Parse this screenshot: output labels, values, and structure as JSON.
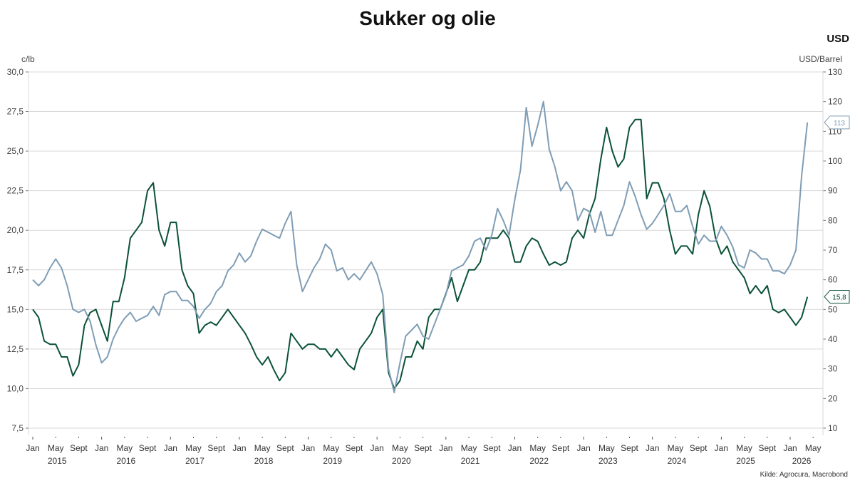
{
  "chart_data": {
    "type": "line",
    "title": "Sukker og olie",
    "right_axis_title": "USD",
    "ylabel_left": "c/lb",
    "ylabel_right": "USD/Barrel",
    "ylim_left": [
      7.5,
      30.0
    ],
    "ylim_right": [
      10,
      130
    ],
    "yticks_left": [
      "30,0",
      "27,5",
      "25,0",
      "22,5",
      "20,0",
      "17,5",
      "15,0",
      "12,5",
      "10,0",
      "7,5"
    ],
    "yticks_right": [
      "130",
      "120",
      "110",
      "100",
      "90",
      "80",
      "70",
      "60",
      "50",
      "40",
      "30",
      "20",
      "10"
    ],
    "grid": true,
    "x_month_labels": [
      "Jan",
      "May",
      "Sept"
    ],
    "x_years": [
      "2015",
      "2016",
      "2017",
      "2018",
      "2019",
      "2020",
      "2021",
      "2022",
      "2023",
      "2024",
      "2025",
      "2026"
    ],
    "source": "Kilde: Agrocura, Macrobond",
    "colors": {
      "sugar": "#0b5237",
      "oil": "#7f9db5"
    },
    "series": [
      {
        "axis": "left",
        "color": "#0b5237",
        "last_label": "15,8",
        "start": "2015-01",
        "values": [
          15.0,
          14.5,
          13.0,
          12.8,
          12.8,
          12.0,
          12.0,
          10.8,
          11.5,
          14.0,
          14.8,
          15.0,
          14.0,
          13.0,
          15.5,
          15.5,
          17.0,
          19.5,
          20.0,
          20.5,
          22.5,
          23.0,
          20.0,
          19.0,
          20.5,
          20.5,
          17.5,
          16.5,
          16.0,
          13.5,
          14.0,
          14.2,
          14.0,
          14.5,
          15.0,
          14.5,
          14.0,
          13.5,
          12.8,
          12.0,
          11.5,
          12.0,
          11.2,
          10.5,
          11.0,
          13.5,
          13.0,
          12.5,
          12.8,
          12.8,
          12.5,
          12.5,
          12.0,
          12.5,
          12.0,
          11.5,
          11.2,
          12.5,
          13.0,
          13.5,
          14.5,
          15.0,
          11.0,
          10.0,
          10.5,
          12.0,
          12.0,
          13.0,
          12.5,
          14.5,
          15.0,
          15.0,
          16.0,
          17.0,
          15.5,
          16.5,
          17.5,
          17.5,
          18.0,
          19.5,
          19.5,
          19.5,
          20.0,
          19.5,
          18.0,
          18.0,
          19.0,
          19.5,
          19.3,
          18.5,
          17.8,
          18.0,
          17.8,
          18.0,
          19.5,
          20.0,
          19.5,
          21.0,
          22.0,
          24.5,
          26.5,
          25.0,
          24.0,
          24.5,
          26.5,
          27.0,
          27.0,
          22.0,
          23.0,
          23.0,
          22.0,
          20.0,
          18.5,
          19.0,
          19.0,
          18.5,
          21.0,
          22.5,
          21.5,
          19.5,
          18.5,
          19.0,
          18.0,
          17.5,
          17.0,
          16.0,
          16.5,
          16.0,
          16.5,
          15.0,
          14.8,
          15.0,
          14.5,
          14.0,
          14.5,
          15.8
        ]
      },
      {
        "axis": "right",
        "color": "#7f9db5",
        "last_label": "113",
        "start": "2015-01",
        "values": [
          60,
          58,
          60,
          64,
          67,
          64,
          58,
          50,
          49,
          50,
          46,
          38,
          32,
          34,
          40,
          44,
          47,
          49,
          46,
          47,
          48,
          51,
          48,
          55,
          56,
          56,
          53,
          53,
          51,
          47,
          50,
          52,
          56,
          58,
          63,
          65,
          69,
          66,
          68,
          73,
          77,
          76,
          75,
          74,
          79,
          83,
          65,
          56,
          60,
          64,
          67,
          72,
          70,
          63,
          64,
          60,
          62,
          60,
          63,
          66,
          62,
          55,
          30,
          22,
          32,
          41,
          43,
          45,
          41,
          40,
          45,
          50,
          55,
          63,
          64,
          65,
          68,
          73,
          74,
          70,
          75,
          84,
          80,
          75,
          87,
          97,
          118,
          105,
          112,
          120,
          104,
          98,
          90,
          93,
          90,
          80,
          84,
          83,
          76,
          83,
          75,
          75,
          80,
          85,
          93,
          88,
          82,
          77,
          79,
          82,
          85,
          89,
          83,
          83,
          85,
          78,
          72,
          75,
          73,
          73,
          78,
          75,
          71,
          65,
          64,
          70,
          69,
          67,
          67,
          63,
          63,
          62,
          65,
          70,
          95,
          113
        ]
      }
    ]
  }
}
